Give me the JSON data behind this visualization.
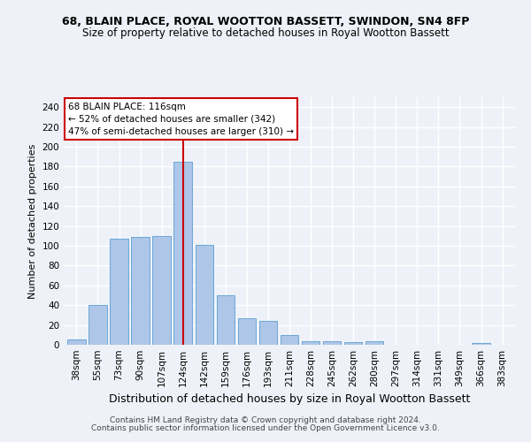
{
  "title": "68, BLAIN PLACE, ROYAL WOOTTON BASSETT, SWINDON, SN4 8FP",
  "subtitle": "Size of property relative to detached houses in Royal Wootton Bassett",
  "xlabel": "Distribution of detached houses by size in Royal Wootton Bassett",
  "ylabel": "Number of detached properties",
  "categories": [
    "38sqm",
    "55sqm",
    "73sqm",
    "90sqm",
    "107sqm",
    "124sqm",
    "142sqm",
    "159sqm",
    "176sqm",
    "193sqm",
    "211sqm",
    "228sqm",
    "245sqm",
    "262sqm",
    "280sqm",
    "297sqm",
    "314sqm",
    "331sqm",
    "349sqm",
    "366sqm",
    "383sqm"
  ],
  "values": [
    5,
    40,
    107,
    109,
    110,
    185,
    101,
    50,
    27,
    24,
    10,
    4,
    4,
    3,
    4,
    0,
    0,
    0,
    0,
    2,
    0
  ],
  "bar_color": "#aec6e8",
  "bar_edge_color": "#5a9fd4",
  "vline_x_index": 5,
  "vline_color": "#cc0000",
  "annotation_line1": "68 BLAIN PLACE: 116sqm",
  "annotation_line2": "← 52% of detached houses are smaller (342)",
  "annotation_line3": "47% of semi-detached houses are larger (310) →",
  "annotation_box_color": "#ffffff",
  "annotation_box_edge_color": "#cc0000",
  "ylim": [
    0,
    250
  ],
  "yticks": [
    0,
    20,
    40,
    60,
    80,
    100,
    120,
    140,
    160,
    180,
    200,
    220,
    240
  ],
  "footer1": "Contains HM Land Registry data © Crown copyright and database right 2024.",
  "footer2": "Contains public sector information licensed under the Open Government Licence v3.0.",
  "bg_color": "#eef2f8",
  "grid_color": "#ffffff",
  "title_fontsize": 9,
  "subtitle_fontsize": 8.5,
  "xlabel_fontsize": 9,
  "ylabel_fontsize": 8,
  "tick_fontsize": 7.5,
  "annotation_fontsize": 7.5,
  "footer_fontsize": 6.5
}
